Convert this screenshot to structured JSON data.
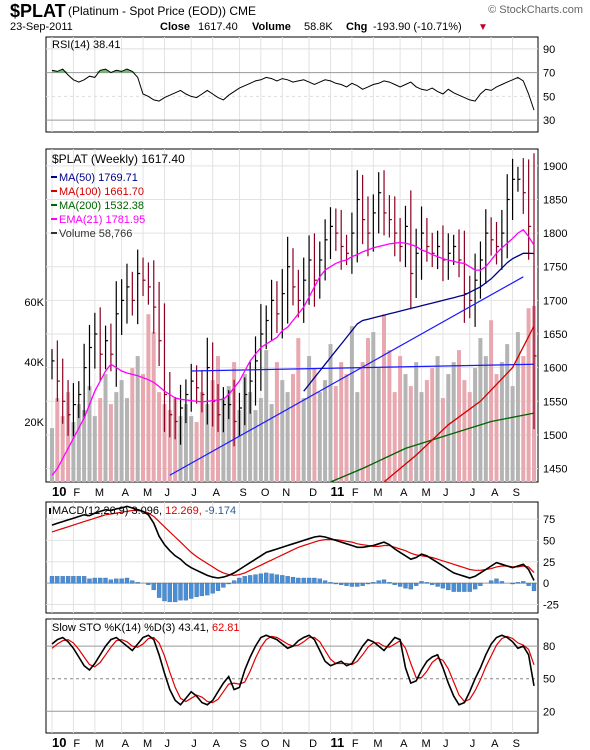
{
  "header": {
    "symbol": "$PLAT",
    "desc": "(Platinum - Spot Price (EOD)) CME",
    "watermark": "© StockCharts.com",
    "date": "23-Sep-2011",
    "close_label": "Close",
    "close_value": "1617.40",
    "volume_label": "Volume",
    "volume_value": "58.8K",
    "chg_label": "Chg",
    "chg_value": "-193.90 (-10.71%)",
    "chg_arrow": "▼"
  },
  "colors": {
    "up_bar": "#000000",
    "down_bar": "#8b0020",
    "ma50": "#00008b",
    "ma100": "#d40000",
    "ma200": "#006400",
    "ema21": "#ff00ff",
    "trendline": "#1a1aff",
    "vol_up": "#b4b4b4",
    "vol_down": "#e8a8b0",
    "macd_hist": "#4a8fd6",
    "rsi_fill": "#55aa55"
  },
  "chart_data": [
    {
      "type": "line",
      "panel": "rsi",
      "legend": "RSI(14) 38.41",
      "ylim": [
        20,
        100
      ],
      "yticks": [
        30,
        50,
        70,
        90
      ],
      "x": [
        0,
        1,
        2,
        3,
        4,
        5,
        6,
        7,
        8,
        9,
        10,
        11,
        12,
        13,
        14,
        15,
        16,
        17,
        18,
        19,
        20,
        21,
        22,
        23,
        24,
        25,
        26,
        27,
        28,
        29,
        30,
        31,
        32,
        33,
        34,
        35,
        36,
        37,
        38,
        39,
        40,
        41,
        42,
        43,
        44,
        45,
        46,
        47,
        48,
        49,
        50,
        51,
        52,
        53,
        54,
        55,
        56,
        57,
        58,
        59,
        60,
        61,
        62,
        63,
        64,
        65,
        66,
        67,
        68,
        69,
        70,
        71,
        72,
        73,
        74,
        75,
        76,
        77,
        78,
        79,
        80,
        81,
        82,
        83,
        84,
        85,
        86,
        87,
        88,
        89,
        90
      ],
      "values": [
        72,
        71,
        73,
        68,
        64,
        62,
        64,
        67,
        66,
        72,
        73,
        70,
        72,
        71,
        73,
        71,
        66,
        52,
        50,
        47,
        46,
        49,
        51,
        53,
        55,
        52,
        50,
        49,
        52,
        55,
        52,
        49,
        47,
        51,
        54,
        57,
        59,
        61,
        63,
        64,
        66,
        65,
        63,
        65,
        64,
        62,
        63,
        64,
        62,
        60,
        62,
        64,
        63,
        61,
        60,
        58,
        61,
        59,
        56,
        58,
        60,
        61,
        63,
        62,
        60,
        58,
        60,
        62,
        58,
        56,
        55,
        57,
        54,
        52,
        56,
        53,
        51,
        49,
        47,
        46,
        52,
        56,
        55,
        58,
        60,
        62,
        64,
        66,
        63,
        52,
        38.41
      ]
    },
    {
      "type": "ohlc",
      "panel": "price",
      "title": "$PLAT (Weekly) 1617.40",
      "ylim": [
        1430,
        1925
      ],
      "yticks": [
        1450,
        1500,
        1550,
        1600,
        1650,
        1700,
        1750,
        1800,
        1850,
        1900
      ],
      "close": [
        1610,
        1580,
        1550,
        1530,
        1545,
        1560,
        1600,
        1630,
        1650,
        1620,
        1640,
        1620,
        1680,
        1700,
        1720,
        1700,
        1740,
        1730,
        1720,
        1690,
        1640,
        1560,
        1530,
        1520,
        1540,
        1560,
        1580,
        1570,
        1560,
        1600,
        1550,
        1530,
        1545,
        1545,
        1520,
        1540,
        1560,
        1580,
        1610,
        1650,
        1670,
        1700,
        1680,
        1710,
        1750,
        1720,
        1700,
        1730,
        1760,
        1730,
        1760,
        1790,
        1810,
        1800,
        1780,
        1770,
        1800,
        1850,
        1820,
        1800,
        1830,
        1860,
        1830,
        1820,
        1800,
        1780,
        1810,
        1740,
        1770,
        1800,
        1780,
        1770,
        1780,
        1760,
        1770,
        1780,
        1760,
        1710,
        1700,
        1730,
        1760,
        1800,
        1790,
        1780,
        1800,
        1850,
        1880,
        1880,
        1860,
        1810,
        1617.4
      ],
      "legend": [
        {
          "name": "MA(50)",
          "value": "1769.71"
        },
        {
          "name": "MA(100)",
          "value": "1661.70"
        },
        {
          "name": "MA(200)",
          "value": "1532.38"
        },
        {
          "name": "EMA(21)",
          "value": "1781.95"
        },
        {
          "name": "Volume",
          "value": "58,766"
        }
      ],
      "ema21": [
        1440,
        1450,
        1465,
        1480,
        1495,
        1510,
        1525,
        1545,
        1565,
        1580,
        1595,
        1605,
        1600,
        1595,
        1592,
        1590,
        1588,
        1585,
        1582,
        1578,
        1572,
        1565,
        1560,
        1555,
        1553,
        1552,
        1551,
        1550,
        1549,
        1550,
        1551,
        1552,
        1553,
        1560,
        1570,
        1580,
        1595,
        1610,
        1620,
        1630,
        1635,
        1640,
        1645,
        1655,
        1660,
        1670,
        1680,
        1690,
        1705,
        1720,
        1735,
        1745,
        1750,
        1755,
        1758,
        1760,
        1765,
        1768,
        1772,
        1775,
        1778,
        1780,
        1782,
        1784,
        1785,
        1786,
        1785,
        1783,
        1780,
        1775,
        1772,
        1768,
        1765,
        1762,
        1760,
        1758,
        1756,
        1755,
        1750,
        1745,
        1745,
        1750,
        1760,
        1770,
        1778,
        1785,
        1792,
        1800,
        1805,
        1795,
        1781.95
      ],
      "ma50": [
        null,
        null,
        null,
        null,
        null,
        null,
        null,
        null,
        null,
        null,
        null,
        null,
        null,
        null,
        null,
        null,
        null,
        null,
        null,
        null,
        null,
        null,
        null,
        null,
        null,
        null,
        null,
        null,
        null,
        null,
        null,
        null,
        null,
        null,
        null,
        null,
        null,
        null,
        null,
        null,
        null,
        null,
        null,
        null,
        null,
        null,
        null,
        1565,
        1575,
        1585,
        1595,
        1605,
        1615,
        1625,
        1635,
        1645,
        1655,
        1665,
        1670,
        1672,
        1674,
        1676,
        1678,
        1680,
        1682,
        1684,
        1686,
        1688,
        1690,
        1692,
        1694,
        1696,
        1698,
        1700,
        1702,
        1704,
        1706,
        1708,
        1712,
        1716,
        1720,
        1726,
        1732,
        1740,
        1748,
        1756,
        1762,
        1766,
        1770,
        1770,
        1769.71
      ],
      "ma100": [
        null,
        null,
        null,
        null,
        null,
        null,
        null,
        null,
        null,
        null,
        null,
        null,
        null,
        null,
        null,
        null,
        null,
        null,
        null,
        null,
        null,
        null,
        null,
        null,
        null,
        null,
        null,
        null,
        null,
        null,
        null,
        null,
        null,
        null,
        null,
        null,
        null,
        null,
        null,
        null,
        null,
        null,
        null,
        null,
        null,
        null,
        null,
        null,
        null,
        null,
        null,
        null,
        null,
        null,
        null,
        null,
        null,
        null,
        null,
        null,
        null,
        null,
        null,
        null,
        null,
        null,
        null,
        null,
        null,
        null,
        null,
        null,
        null,
        null,
        null,
        null,
        null,
        null,
        null,
        null,
        null,
        null,
        null,
        null,
        null,
        null,
        null,
        null,
        null,
        1658,
        1661.7
      ],
      "ma100_anchor": [
        [
          62,
          1430
        ],
        [
          68,
          1470
        ],
        [
          74,
          1515
        ],
        [
          80,
          1550
        ],
        [
          86,
          1600
        ],
        [
          90,
          1661.7
        ]
      ],
      "ma200_anchor": [
        [
          52,
          1430
        ],
        [
          58,
          1450
        ],
        [
          66,
          1480
        ],
        [
          74,
          1500
        ],
        [
          82,
          1520
        ],
        [
          90,
          1532.38
        ]
      ],
      "ma50_anchor": [
        [
          22,
          1430
        ],
        [
          30,
          1480
        ],
        [
          40,
          1540
        ],
        [
          50,
          1600
        ],
        [
          60,
          1650
        ],
        [
          70,
          1690
        ],
        [
          80,
          1720
        ],
        [
          90,
          1769.71
        ]
      ],
      "trendlines": [
        [
          [
            22,
            1440
          ],
          [
            88,
            1735
          ]
        ],
        [
          [
            26,
            1595
          ],
          [
            90,
            1605
          ]
        ]
      ],
      "volume_axis": [
        "20K",
        "40K",
        "60K"
      ],
      "volume_max": 80000,
      "volume": [
        18000,
        28000,
        22000,
        30000,
        20000,
        26000,
        24000,
        32000,
        22000,
        28000,
        36000,
        26000,
        30000,
        34000,
        28000,
        38000,
        42000,
        36000,
        56000,
        50000,
        30000,
        26000,
        24000,
        28000,
        22000,
        26000,
        22000,
        20000,
        30000,
        26000,
        34000,
        42000,
        28000,
        32000,
        40000,
        24000,
        36000,
        30000,
        24000,
        28000,
        44000,
        26000,
        40000,
        34000,
        30000,
        36000,
        48000,
        28000,
        42000,
        38000,
        30000,
        34000,
        46000,
        32000,
        40000,
        36000,
        52000,
        30000,
        40000,
        48000,
        50000,
        38000,
        56000,
        44000,
        30000,
        42000,
        36000,
        32000,
        40000,
        30000,
        34000,
        38000,
        42000,
        28000,
        36000,
        40000,
        44000,
        34000,
        30000,
        38000,
        48000,
        42000,
        54000,
        36000,
        40000,
        46000,
        32000,
        50000,
        42000,
        58000,
        58766
      ]
    },
    {
      "type": "line",
      "panel": "macd",
      "legend": [
        {
          "name": "MACD(12,26,9)",
          "value": "3.096"
        },
        {
          "name": "",
          "value": "12.269"
        },
        {
          "name": "",
          "value": "-9.174"
        }
      ],
      "ylim": [
        -35,
        95
      ],
      "yticks": [
        -25,
        0,
        25,
        50,
        75
      ],
      "macd": [
        68,
        70,
        72,
        74,
        76,
        78,
        80,
        79,
        82,
        84,
        86,
        85,
        87,
        88,
        90,
        88,
        86,
        84,
        80,
        70,
        55,
        45,
        38,
        32,
        28,
        22,
        18,
        15,
        12,
        9,
        7,
        6,
        7,
        9,
        12,
        16,
        20,
        24,
        28,
        32,
        36,
        38,
        40,
        42,
        44,
        46,
        48,
        50,
        52,
        54,
        55,
        54,
        52,
        50,
        48,
        46,
        44,
        42,
        42,
        43,
        44,
        46,
        48,
        45,
        40,
        36,
        32,
        28,
        30,
        34,
        32,
        28,
        24,
        20,
        16,
        12,
        10,
        8,
        6,
        8,
        12,
        16,
        20,
        24,
        22,
        20,
        18,
        20,
        22,
        16,
        3.096
      ],
      "signal": [
        60,
        62,
        64,
        66,
        68,
        70,
        72,
        74,
        76,
        78,
        80,
        81,
        82,
        83,
        84,
        85,
        85,
        84,
        82,
        78,
        72,
        66,
        60,
        54,
        48,
        42,
        36,
        31,
        27,
        23,
        19,
        15,
        12,
        10,
        9,
        10,
        12,
        15,
        18,
        21,
        24,
        27,
        30,
        33,
        36,
        39,
        42,
        44,
        46,
        48,
        50,
        51,
        51,
        51,
        50,
        49,
        48,
        46,
        45,
        44,
        43,
        43,
        44,
        44,
        42,
        40,
        38,
        35,
        33,
        32,
        31,
        30,
        28,
        26,
        24,
        22,
        20,
        18,
        16,
        15,
        15,
        16,
        17,
        19,
        20,
        20,
        19,
        19,
        20,
        19,
        12.269
      ],
      "hist": [
        8,
        8,
        8,
        8,
        8,
        8,
        8,
        5,
        6,
        6,
        6,
        4,
        5,
        5,
        6,
        3,
        1,
        0,
        -2,
        -8,
        -17,
        -21,
        -22,
        -22,
        -20,
        -20,
        -18,
        -16,
        -15,
        -14,
        -12,
        -9,
        -5,
        -1,
        3,
        6,
        8,
        9,
        10,
        11,
        12,
        11,
        10,
        9,
        8,
        7,
        6,
        6,
        6,
        6,
        5,
        3,
        1,
        -1,
        -2,
        -3,
        -4,
        -4,
        -3,
        -1,
        1,
        3,
        4,
        1,
        -2,
        -4,
        -6,
        -7,
        -3,
        2,
        1,
        -2,
        -4,
        -6,
        -8,
        -10,
        -10,
        -10,
        -10,
        -7,
        -3,
        0,
        3,
        5,
        2,
        0,
        -1,
        1,
        2,
        -3,
        -9.174
      ]
    },
    {
      "type": "line",
      "panel": "sto",
      "legend": [
        {
          "name": "Slow STO %K(14) %D(3)",
          "value": "43.41"
        },
        {
          "name": "",
          "value": "62.81"
        }
      ],
      "ylim": [
        0,
        105
      ],
      "yticks": [
        20,
        50,
        80
      ],
      "k": [
        82,
        86,
        88,
        84,
        78,
        70,
        62,
        58,
        64,
        72,
        80,
        86,
        88,
        84,
        80,
        76,
        82,
        88,
        90,
        86,
        72,
        55,
        40,
        30,
        26,
        32,
        38,
        34,
        28,
        26,
        30,
        38,
        46,
        52,
        40,
        42,
        58,
        70,
        80,
        88,
        90,
        88,
        86,
        82,
        78,
        80,
        85,
        88,
        90,
        86,
        76,
        66,
        62,
        64,
        66,
        62,
        64,
        72,
        80,
        86,
        84,
        80,
        76,
        82,
        88,
        86,
        60,
        46,
        48,
        58,
        66,
        70,
        72,
        60,
        46,
        34,
        26,
        28,
        38,
        50,
        60,
        72,
        82,
        88,
        90,
        88,
        84,
        78,
        80,
        72,
        43.41
      ],
      "d": [
        78,
        82,
        85,
        86,
        83,
        77,
        70,
        63,
        61,
        65,
        72,
        79,
        85,
        86,
        84,
        80,
        79,
        82,
        87,
        88,
        83,
        71,
        56,
        42,
        32,
        29,
        32,
        35,
        33,
        29,
        28,
        31,
        38,
        45,
        46,
        45,
        47,
        57,
        69,
        79,
        86,
        89,
        88,
        85,
        82,
        80,
        81,
        84,
        88,
        88,
        84,
        76,
        68,
        64,
        64,
        64,
        63,
        66,
        72,
        79,
        83,
        83,
        80,
        79,
        82,
        85,
        78,
        64,
        51,
        51,
        57,
        65,
        69,
        67,
        59,
        47,
        35,
        29,
        31,
        39,
        49,
        61,
        71,
        81,
        87,
        89,
        87,
        83,
        81,
        77,
        62.81
      ]
    }
  ],
  "x_axis": {
    "labels": [
      "10",
      "F",
      "M",
      "A",
      "M",
      "J",
      "J",
      "A",
      "S",
      "O",
      "N",
      "D",
      "11",
      "F",
      "M",
      "A",
      "M",
      "J",
      "J",
      "A",
      "S"
    ],
    "positions": [
      0,
      4,
      8,
      13,
      17,
      21,
      26,
      30,
      35,
      39,
      43,
      48,
      52,
      56,
      60,
      65,
      69,
      73,
      78,
      82,
      86
    ],
    "bold": [
      "10",
      "11"
    ]
  }
}
